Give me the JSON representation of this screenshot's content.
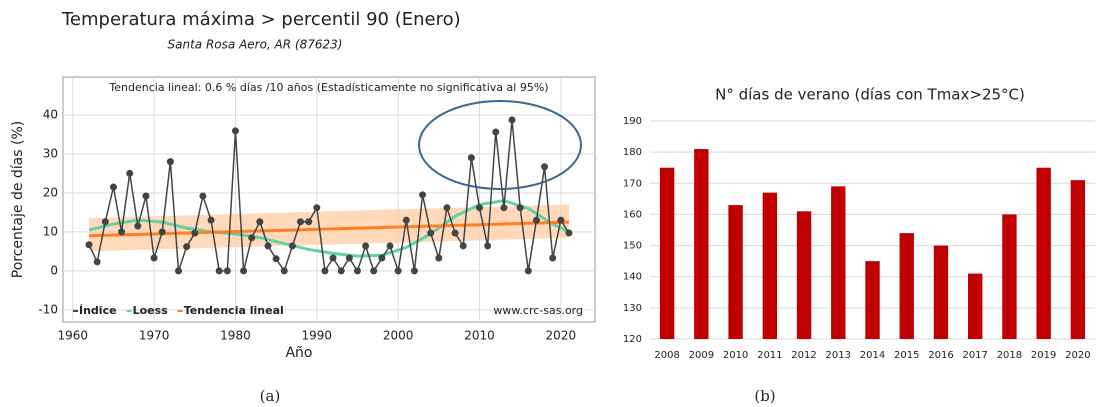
{
  "chart_data": [
    {
      "type": "line",
      "title": "Temperatura máxima > percentil 90 (Enero)",
      "subtitle": "Santa Rosa Aero, AR (87623)",
      "trend_note": "Tendencia lineal: 0.6 % días /10 años (Estadísticamente no significativa al 95%)",
      "source": "www.crc-sas.org",
      "x_label": "Año",
      "y_label": "Porcentaje de días (%)",
      "caption": "(a)",
      "xlim": [
        1958.8,
        2024.2
      ],
      "ylim": [
        -13.1,
        49.7
      ],
      "xticks": [
        1960,
        1970,
        1980,
        1990,
        2000,
        2010,
        2020
      ],
      "yticks": [
        -10,
        0,
        10,
        20,
        30,
        40
      ],
      "grid": true,
      "legend": "bottom-left",
      "band": {
        "x": [
          1962,
          2021
        ],
        "lower": [
          5,
          8.5
        ],
        "upper": [
          13.5,
          17
        ],
        "color": "#ffcfa8"
      },
      "series": [
        {
          "name": "Índice",
          "color": "#444444",
          "markers": true,
          "x": [
            1962,
            1963,
            1964,
            1965,
            1966,
            1967,
            1968,
            1969,
            1970,
            1971,
            1972,
            1973,
            1974,
            1975,
            1976,
            1977,
            1978,
            1979,
            1980,
            1981,
            1982,
            1983,
            1984,
            1985,
            1986,
            1987,
            1988,
            1989,
            1990,
            1991,
            1992,
            1993,
            1994,
            1995,
            1996,
            1997,
            1998,
            1999,
            2000,
            2001,
            2002,
            2003,
            2004,
            2005,
            2006,
            2007,
            2008,
            2009,
            2010,
            2011,
            2012,
            2013,
            2014,
            2015,
            2016,
            2017,
            2018,
            2019,
            2020,
            2021
          ],
          "values": [
            6.7,
            2.3,
            12.6,
            21.5,
            10,
            25,
            11.5,
            19.2,
            3.3,
            10,
            28,
            0,
            6.2,
            9.7,
            19.2,
            13,
            0,
            0,
            35.9,
            0,
            8.5,
            12.6,
            6.4,
            3.1,
            0,
            6.4,
            12.6,
            12.6,
            16.2,
            0,
            3.3,
            0,
            3.3,
            0,
            6.4,
            0,
            3.3,
            6.4,
            0,
            13,
            0,
            19.5,
            9.7,
            3.3,
            16.2,
            9.7,
            6.4,
            29,
            16.2,
            6.4,
            35.6,
            16.2,
            38.7,
            16.2,
            0,
            13,
            26.7,
            3.3,
            13,
            9.7
          ]
        },
        {
          "name": "Loess",
          "color": "#5fd3a6",
          "markers": false,
          "x": [
            1962,
            1965,
            1968,
            1971,
            1974,
            1977,
            1980,
            1983,
            1986,
            1989,
            1992,
            1995,
            1998,
            2001,
            2004,
            2007,
            2010,
            2013,
            2016,
            2019,
            2021
          ],
          "values": [
            10.5,
            12,
            13,
            12.5,
            11,
            10,
            9.5,
            8.5,
            7,
            5.5,
            4.5,
            3.8,
            4,
            6,
            9.5,
            14,
            17,
            18,
            16,
            12,
            10
          ]
        },
        {
          "name": "Tendencia lineal",
          "color": "#ff7f27",
          "markers": false,
          "x": [
            1962,
            2021
          ],
          "values": [
            9,
            12.5
          ]
        }
      ]
    },
    {
      "type": "bar",
      "title": "N° días de verano (días con Tmax>25°C)",
      "caption": "(b)",
      "color": "#c00000",
      "categories": [
        "2008",
        "2009",
        "2010",
        "2011",
        "2012",
        "2013",
        "2014",
        "2015",
        "2016",
        "2017",
        "2018",
        "2019",
        "2020"
      ],
      "values": [
        175,
        181,
        163,
        167,
        161,
        169,
        145,
        154,
        150,
        141,
        160,
        175,
        171
      ],
      "ylim": [
        120,
        190
      ],
      "yticks": [
        120,
        130,
        140,
        150,
        160,
        170,
        180,
        190
      ],
      "grid": true
    }
  ]
}
